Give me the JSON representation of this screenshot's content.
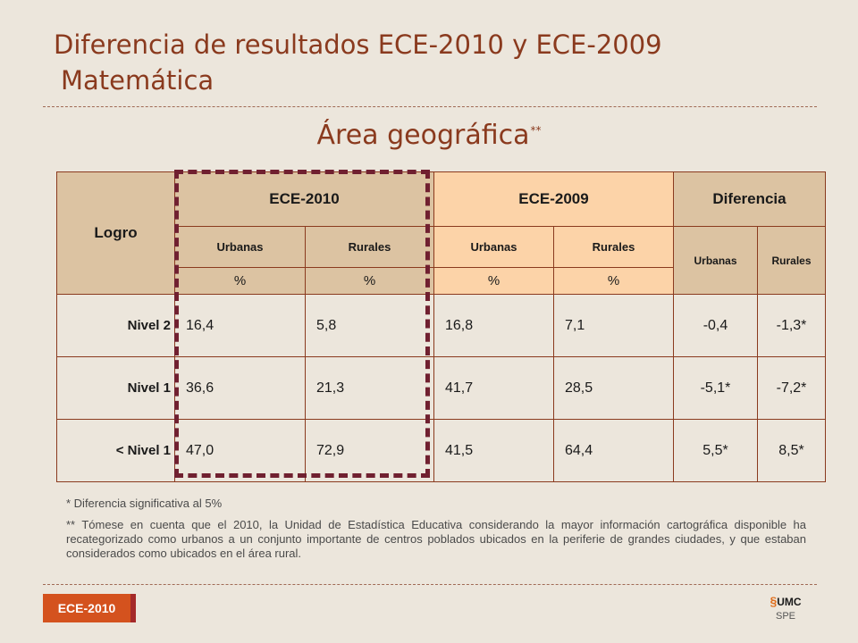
{
  "title": {
    "line1": "Diferencia de resultados ECE-2010 y ECE-2009",
    "line2": "Matemática"
  },
  "subtitle": {
    "text": "Área geográfica",
    "mark": "**"
  },
  "table": {
    "row_header": "Logro",
    "groups": [
      "ECE-2010",
      "ECE-2009",
      "Diferencia"
    ],
    "sub_ece2010": [
      "Urbanas",
      "Rurales"
    ],
    "sub_ece2009": [
      "Urbanas",
      "Rurales"
    ],
    "sub_dif": [
      "Urbanas",
      "Rurales"
    ],
    "units": [
      "%",
      "%",
      "%",
      "%"
    ],
    "rows": [
      {
        "label": "Nivel 2",
        "values": [
          "16,4",
          "5,8",
          "16,8",
          "7,1",
          "-0,4",
          "-1,3*"
        ]
      },
      {
        "label": "Nivel 1",
        "values": [
          "36,6",
          "21,3",
          "41,7",
          "28,5",
          "-5,1*",
          "-7,2*"
        ]
      },
      {
        "label": "< Nivel 1",
        "values": [
          "47,0",
          "72,9",
          "41,5",
          "64,4",
          "5,5*",
          "8,5*"
        ]
      }
    ]
  },
  "notes": {
    "note1": "* Diferencia significativa al 5%",
    "note2": "** Tómese en cuenta que el 2010, la Unidad de Estadística Educativa considerando la mayor información cartográfica disponible ha recategorizado como urbanos a un conjunto importante de centros poblados ubicados en la periferie de grandes ciudades, y que estaban considerados como ubicados en el área rural."
  },
  "footer": {
    "badge": "ECE-2010",
    "logo_mark": "UMC",
    "logo_text": "SPE"
  },
  "colors": {
    "title": "#8a3a1e",
    "background": "#ece6dc",
    "ece2010_header": "#dcc3a2",
    "ece2009_header": "#fcd3a8",
    "highlight_border": "#702030",
    "badge": "#d4521e"
  }
}
